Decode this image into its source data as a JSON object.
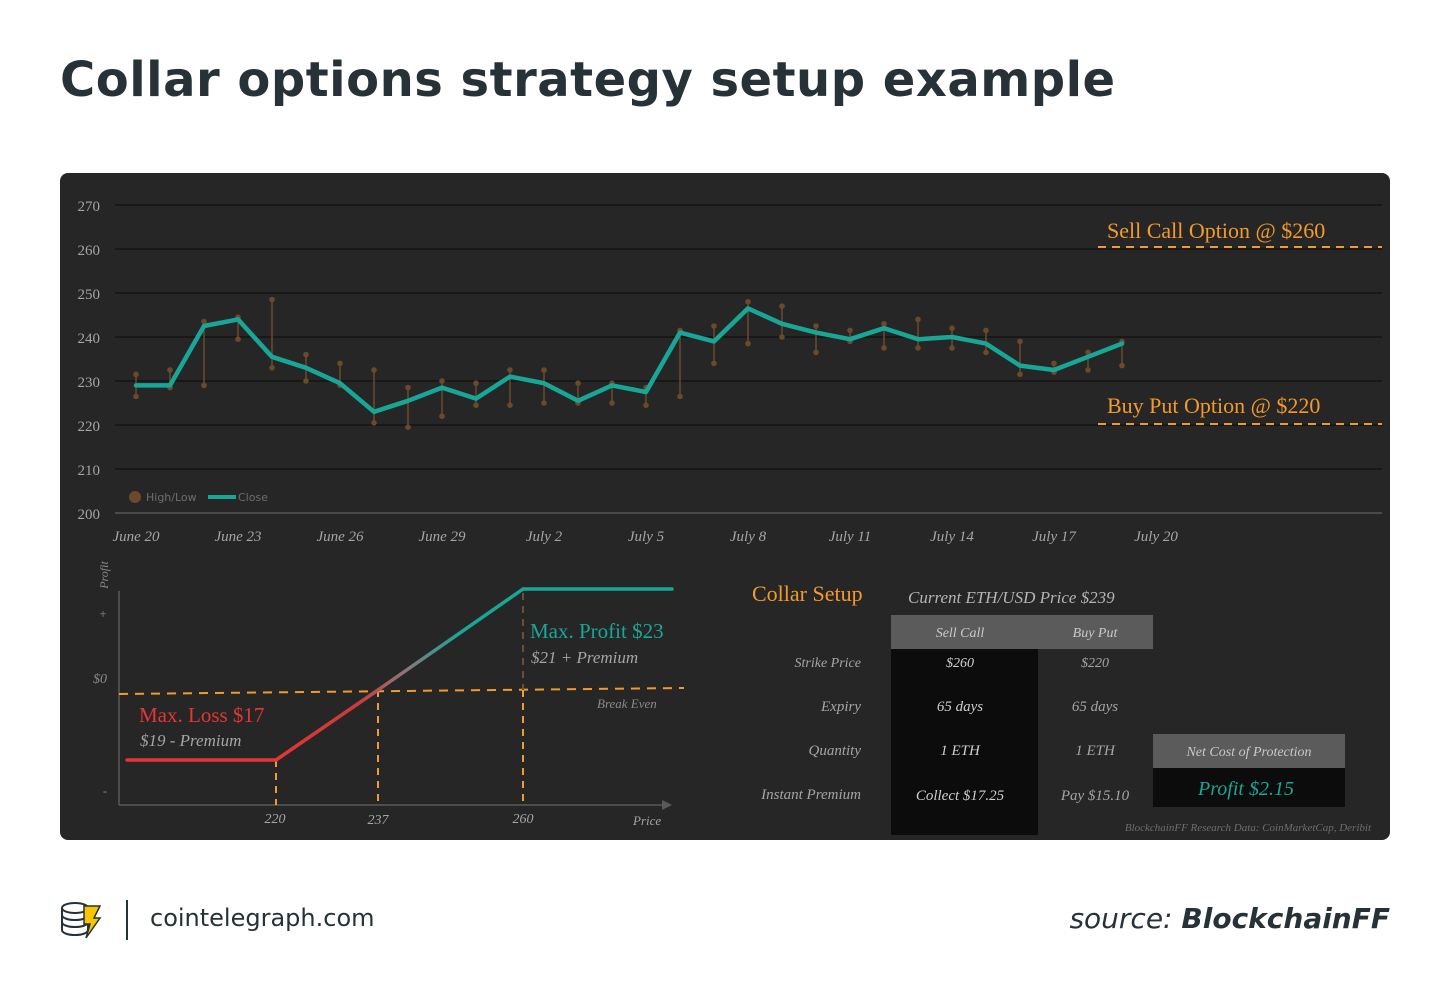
{
  "title": "Collar options strategy setup example",
  "colors": {
    "panel_bg": "#262626",
    "close_line": "#18a797",
    "high_low": "#6b4a2c",
    "strike": "#f39a2e",
    "loss": "#e53535",
    "profit": "#18a797"
  },
  "chart_data": [
    {
      "type": "line",
      "title": "",
      "xlabel": "",
      "ylabel": "",
      "ylim": [
        200,
        270
      ],
      "y_ticks": [
        "200",
        "210",
        "220",
        "230",
        "240",
        "250",
        "260",
        "270"
      ],
      "x_ticks": [
        "June 20",
        "June 23",
        "June 26",
        "June 29",
        "July 2",
        "July 5",
        "July 8",
        "July 11",
        "July 14",
        "July 17",
        "July 20"
      ],
      "grid": true,
      "legend_position": "bottom-left",
      "legend": [
        "High/Low",
        "Close"
      ],
      "series": [
        {
          "name": "Close",
          "type": "line",
          "values": [
            229,
            229,
            242.5,
            244,
            235.5,
            233,
            229.5,
            223,
            225.5,
            228.5,
            226,
            231,
            229.5,
            225.5,
            229,
            227.5,
            241,
            239,
            246.5,
            243,
            241,
            239.5,
            242,
            239.5,
            240,
            238.5,
            233.5,
            232.5,
            235.5,
            238.5
          ]
        },
        {
          "name": "High/Low",
          "type": "range",
          "high": [
            231.5,
            232.5,
            243.5,
            244.5,
            248.5,
            236,
            234,
            232.5,
            228.5,
            230,
            229.5,
            232.5,
            232.5,
            229.5,
            229.5,
            228.5,
            241.5,
            242.5,
            248,
            247,
            242.5,
            241.5,
            243,
            244,
            242,
            241.5,
            239,
            234,
            236.5,
            239
          ],
          "low": [
            226.5,
            228.5,
            229,
            239.5,
            233,
            230,
            229,
            220.5,
            219.5,
            222,
            224.5,
            224.5,
            225,
            225,
            225,
            224.5,
            226.5,
            234,
            238.5,
            240,
            236.5,
            239,
            237.5,
            237.5,
            237.5,
            236.5,
            231.5,
            232,
            232.5,
            233.5
          ]
        }
      ],
      "annotations": [
        {
          "label": "Sell Call Option @ $260",
          "y": 260
        },
        {
          "label": "Buy Put Option @ $220",
          "y": 220
        }
      ]
    },
    {
      "type": "line",
      "title": "",
      "xlabel": "Price",
      "ylabel": "Profit",
      "x_ticks": [
        "220",
        "237",
        "260"
      ],
      "y_ticks": [
        "+",
        "$0",
        "-"
      ],
      "series": [
        {
          "name": "",
          "x": [
            208,
            220,
            237,
            260,
            282
          ],
          "y": [
            -17,
            -17,
            0,
            23,
            23
          ]
        }
      ],
      "break_even_label": "Break Even",
      "max_loss": {
        "label": "Max. Loss $17",
        "sub": "$19 - Premium"
      },
      "max_profit": {
        "label": "Max. Profit $23",
        "sub": "$21 + Premium"
      }
    }
  ],
  "setup": {
    "title": "Collar Setup",
    "current_price": "Current ETH/USD Price $239",
    "col_sell": "Sell Call",
    "col_buy": "Buy Put",
    "rows": [
      {
        "label": "Strike Price",
        "sell": "$260",
        "buy": "$220"
      },
      {
        "label": "Expiry",
        "sell": "65 days",
        "buy": "65 days"
      },
      {
        "label": "Quantity",
        "sell": "1 ETH",
        "buy": "1 ETH"
      },
      {
        "label": "Instant Premium",
        "sell": "Collect $17.25",
        "buy": "Pay $15.10"
      }
    ],
    "net_label": "Net Cost of Protection",
    "net_value": "Profit $2.15",
    "research": "BlockchainFF Research Data: CoinMarketCap, Deribit"
  },
  "footer": {
    "site": "cointelegraph.com",
    "source_prefix": "source:",
    "source_brand": "BlockchainFF"
  }
}
